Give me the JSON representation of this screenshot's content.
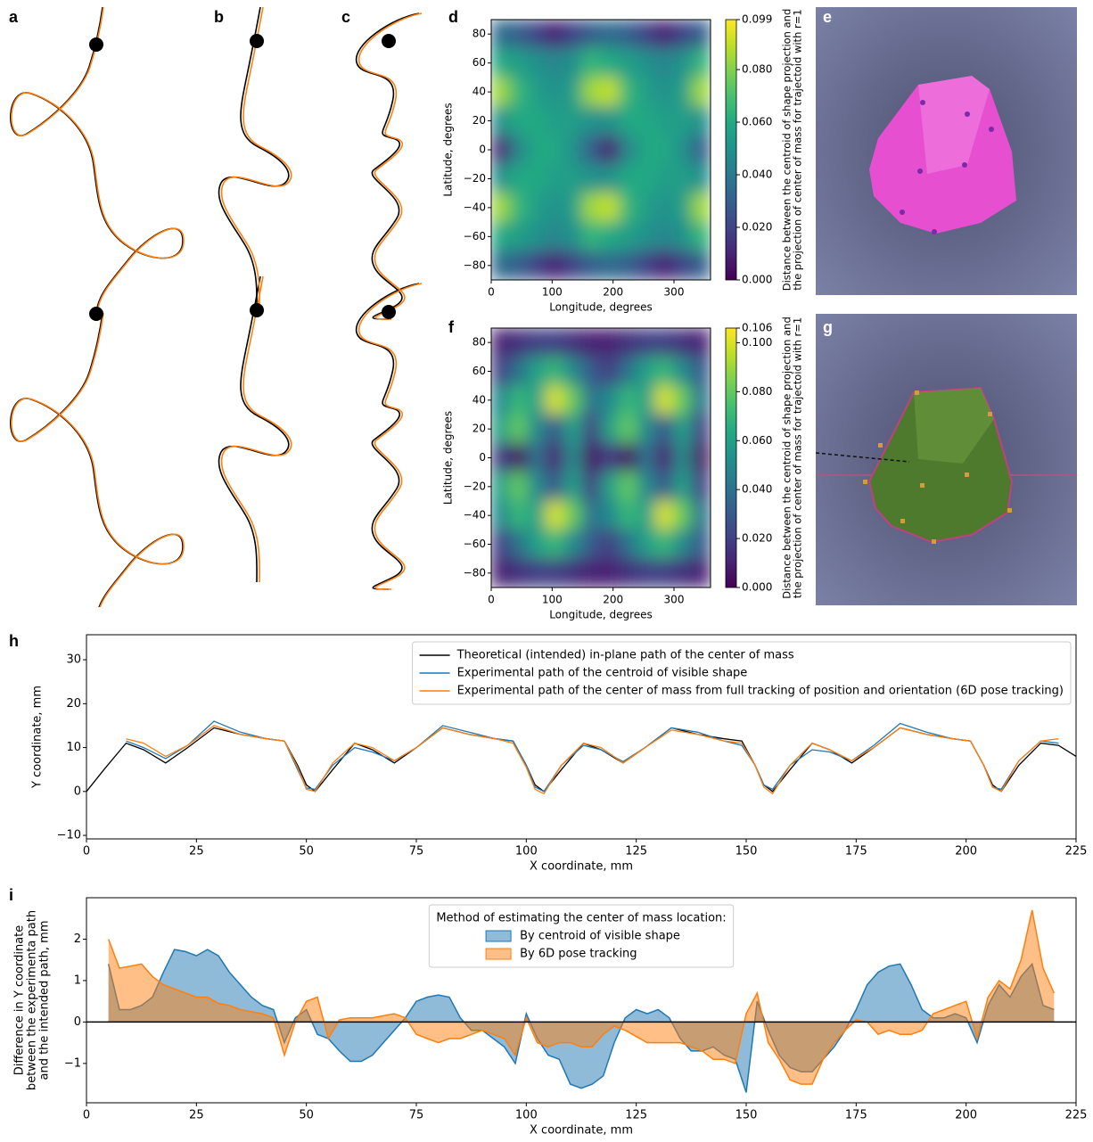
{
  "image_panels": [
    {
      "label": "a"
    },
    {
      "label": "b"
    },
    {
      "label": "c"
    },
    {
      "label": "e"
    },
    {
      "label": "g"
    }
  ],
  "chart_data": [
    {
      "type": "heatmap",
      "label": "d",
      "xlabel": "Longitude, degrees",
      "ylabel": "Latitude, degrees",
      "xlim": [
        0,
        360
      ],
      "ylim": [
        -90,
        90
      ],
      "xticks": [
        0,
        100,
        200,
        300
      ],
      "yticks": [
        {
          "value": -80,
          "label": "−80"
        },
        {
          "value": -60,
          "label": "−60"
        },
        {
          "value": -40,
          "label": "−40"
        },
        {
          "value": -20,
          "label": "−20"
        },
        0,
        20,
        40,
        60,
        80
      ],
      "x": [
        15,
        45,
        75,
        105,
        135,
        165,
        195,
        225,
        255,
        285,
        315,
        345
      ],
      "y": [
        80,
        60,
        40,
        20,
        0,
        -20,
        -40,
        -60,
        -80
      ],
      "z": [
        [
          0.035,
          0.03,
          0.02,
          0.01,
          0.02,
          0.03,
          0.035,
          0.03,
          0.02,
          0.01,
          0.02,
          0.03
        ],
        [
          0.06,
          0.055,
          0.05,
          0.045,
          0.05,
          0.065,
          0.06,
          0.055,
          0.05,
          0.045,
          0.05,
          0.065
        ],
        [
          0.085,
          0.065,
          0.055,
          0.05,
          0.055,
          0.085,
          0.09,
          0.065,
          0.055,
          0.05,
          0.055,
          0.085
        ],
        [
          0.05,
          0.06,
          0.06,
          0.055,
          0.055,
          0.05,
          0.05,
          0.06,
          0.06,
          0.055,
          0.055,
          0.05
        ],
        [
          0.01,
          0.045,
          0.06,
          0.06,
          0.05,
          0.03,
          0.01,
          0.045,
          0.06,
          0.06,
          0.05,
          0.03
        ],
        [
          0.05,
          0.06,
          0.06,
          0.055,
          0.055,
          0.05,
          0.05,
          0.06,
          0.06,
          0.055,
          0.055,
          0.05
        ],
        [
          0.085,
          0.065,
          0.055,
          0.05,
          0.055,
          0.085,
          0.09,
          0.065,
          0.055,
          0.05,
          0.055,
          0.085
        ],
        [
          0.06,
          0.055,
          0.05,
          0.045,
          0.05,
          0.065,
          0.06,
          0.055,
          0.05,
          0.045,
          0.05,
          0.065
        ],
        [
          0.035,
          0.03,
          0.02,
          0.01,
          0.02,
          0.03,
          0.035,
          0.03,
          0.02,
          0.01,
          0.02,
          0.03
        ]
      ],
      "colormap": "viridis",
      "zlim": [
        0,
        0.099
      ],
      "colorbar_ticks": [
        {
          "value": 0,
          "label": "0.000"
        },
        {
          "value": 0.02,
          "label": "0.020"
        },
        {
          "value": 0.04,
          "label": "0.040"
        },
        {
          "value": 0.06,
          "label": "0.060"
        },
        {
          "value": 0.08,
          "label": "0.080"
        },
        {
          "value": 0.099,
          "label": "0.099"
        }
      ],
      "colorbar_label": [
        "Distance between the centroid of shape projection and",
        "the projection of center of mass for trajectoid with r=1"
      ]
    },
    {
      "type": "heatmap",
      "label": "f",
      "xlabel": "Longitude, degrees",
      "ylabel": "Latitude, degrees",
      "xlim": [
        0,
        360
      ],
      "ylim": [
        -90,
        90
      ],
      "xticks": [
        0,
        100,
        200,
        300
      ],
      "yticks": [
        {
          "value": -80,
          "label": "−80"
        },
        {
          "value": -60,
          "label": "−60"
        },
        {
          "value": -40,
          "label": "−40"
        },
        {
          "value": -20,
          "label": "−20"
        },
        0,
        20,
        40,
        60,
        80
      ],
      "x": [
        15,
        45,
        75,
        105,
        135,
        165,
        195,
        225,
        255,
        285,
        315,
        345
      ],
      "y": [
        80,
        60,
        40,
        20,
        0,
        -20,
        -40,
        -60,
        -80
      ],
      "z": [
        [
          0.01,
          0.015,
          0.02,
          0.02,
          0.015,
          0.01,
          0.01,
          0.015,
          0.02,
          0.02,
          0.015,
          0.01
        ],
        [
          0.02,
          0.04,
          0.06,
          0.07,
          0.05,
          0.03,
          0.02,
          0.04,
          0.06,
          0.07,
          0.05,
          0.03
        ],
        [
          0.05,
          0.07,
          0.06,
          0.1,
          0.08,
          0.04,
          0.05,
          0.07,
          0.06,
          0.1,
          0.08,
          0.04
        ],
        [
          0.06,
          0.08,
          0.05,
          0.03,
          0.06,
          0.02,
          0.06,
          0.08,
          0.05,
          0.03,
          0.06,
          0.02
        ],
        [
          0.02,
          0.005,
          0.04,
          0.01,
          0.05,
          0.005,
          0.02,
          0.005,
          0.04,
          0.01,
          0.05,
          0.005
        ],
        [
          0.06,
          0.08,
          0.05,
          0.03,
          0.06,
          0.02,
          0.06,
          0.08,
          0.05,
          0.03,
          0.06,
          0.02
        ],
        [
          0.05,
          0.07,
          0.06,
          0.1,
          0.08,
          0.04,
          0.05,
          0.07,
          0.06,
          0.1,
          0.08,
          0.04
        ],
        [
          0.02,
          0.04,
          0.06,
          0.07,
          0.05,
          0.03,
          0.02,
          0.04,
          0.06,
          0.07,
          0.05,
          0.03
        ],
        [
          0.01,
          0.015,
          0.02,
          0.02,
          0.015,
          0.01,
          0.01,
          0.015,
          0.02,
          0.02,
          0.015,
          0.01
        ]
      ],
      "colormap": "viridis",
      "zlim": [
        0,
        0.106
      ],
      "colorbar_ticks": [
        {
          "value": 0,
          "label": "0.000"
        },
        {
          "value": 0.02,
          "label": "0.020"
        },
        {
          "value": 0.04,
          "label": "0.040"
        },
        {
          "value": 0.06,
          "label": "0.060"
        },
        {
          "value": 0.08,
          "label": "0.080"
        },
        {
          "value": 0.1,
          "label": "0.100"
        },
        {
          "value": 0.106,
          "label": "0.106"
        }
      ],
      "colorbar_label": [
        "Distance between the centroid of shape projection and",
        "the projection of center of mass for trajectoid with r=1"
      ]
    },
    {
      "type": "line",
      "label": "h",
      "xlabel": "X coordinate, mm",
      "ylabel": "Y coordinate, mm",
      "xlim": [
        0,
        225
      ],
      "ylim": [
        -10.8,
        35.7
      ],
      "xticks": [
        0,
        25,
        50,
        75,
        100,
        125,
        150,
        175,
        200,
        225
      ],
      "yticks": [
        {
          "value": -10,
          "label": "−10"
        },
        0,
        10,
        20,
        30
      ],
      "legend": "upper right",
      "x": [
        0,
        4,
        9,
        13,
        18,
        23,
        29,
        35,
        41,
        45,
        48,
        50,
        52,
        56,
        61,
        65,
        70,
        75,
        81,
        87,
        93,
        97,
        100,
        102,
        104,
        108,
        113,
        117,
        122,
        127,
        133,
        139,
        145,
        149,
        152,
        154,
        156,
        160,
        165,
        169,
        174,
        179,
        185,
        191,
        197,
        201,
        204,
        206,
        208,
        212,
        217,
        221,
        225
      ],
      "series": [
        {
          "name": "Theoretical (intended) in-plane path of the center of mass",
          "color": "#000000",
          "values": [
            0,
            5,
            11,
            9.5,
            6.5,
            10,
            14.5,
            13,
            12,
            11.5,
            6,
            1.5,
            0,
            5,
            11,
            9.5,
            6.5,
            10,
            14.5,
            13,
            12,
            11.5,
            6,
            1.5,
            0,
            5,
            11,
            9.5,
            6.5,
            10,
            14.5,
            13,
            12,
            11.5,
            6,
            1.5,
            0,
            5,
            11,
            9.5,
            6.5,
            10,
            14.5,
            13,
            12,
            11.5,
            6,
            1.5,
            0,
            6,
            11,
            10.5,
            8
          ]
        },
        {
          "name": "Experimental path of the centroid of visible shape",
          "color": "#1f77b4",
          "values": [
            null,
            null,
            11.5,
            10,
            7.5,
            10.5,
            16,
            13.5,
            12,
            11.5,
            5,
            0.8,
            0.5,
            6,
            10,
            9,
            7,
            10,
            15,
            13.5,
            12,
            11.5,
            6,
            1,
            0,
            6,
            10.5,
            9.5,
            6.8,
            10,
            14.5,
            13.5,
            11.5,
            10.5,
            6,
            1.5,
            0.5,
            6,
            9.5,
            9,
            7,
            10.5,
            15.5,
            13.5,
            12,
            11.5,
            6,
            1,
            0.5,
            7,
            11.5,
            11,
            null
          ]
        },
        {
          "name": "Experimental path of the center of mass from full tracking of position and orientation (6D pose tracking)",
          "color": "#ff7f0e",
          "values": [
            null,
            null,
            12,
            11,
            8,
            10.5,
            15,
            13,
            12,
            11.5,
            5.5,
            0.5,
            0,
            6.5,
            11,
            10,
            7,
            10,
            14.5,
            13,
            12,
            11,
            5.5,
            0.5,
            -0.5,
            6,
            11,
            10,
            6.5,
            10,
            14,
            13,
            11.5,
            11,
            6,
            1,
            -0.5,
            6,
            11,
            9.5,
            7,
            10,
            14.5,
            13,
            12,
            11.5,
            6,
            1,
            0,
            7,
            11.5,
            12,
            null
          ]
        }
      ]
    },
    {
      "type": "area",
      "label": "i",
      "xlabel": "X coordinate, mm",
      "ylabel": [
        "Difference in Y coordinate",
        "between the experimenta path",
        "and the intended path, mm"
      ],
      "xlim": [
        0,
        225
      ],
      "ylim": [
        -1.95,
        3.0
      ],
      "xticks": [
        0,
        25,
        50,
        75,
        100,
        125,
        150,
        175,
        200,
        225
      ],
      "yticks": [
        {
          "value": -1,
          "label": "−1"
        },
        0,
        1,
        2
      ],
      "hline": 0,
      "fill_opacity": 0.5,
      "legend": "upper center",
      "legend_title": "Method of estimating the center of mass location:",
      "x": [
        5,
        7.5,
        10,
        12.5,
        15,
        17.5,
        20,
        22.5,
        25,
        27.5,
        30,
        32.5,
        35,
        37.5,
        40,
        42.5,
        45,
        47.5,
        50,
        52.5,
        55,
        57.5,
        60,
        62.5,
        65,
        67.5,
        70,
        72.5,
        75,
        77.5,
        80,
        82.5,
        85,
        87.5,
        90,
        92.5,
        95,
        97.5,
        100,
        102.5,
        105,
        107.5,
        110,
        112.5,
        115,
        117.5,
        120,
        122.5,
        125,
        127.5,
        130,
        132.5,
        135,
        137.5,
        140,
        142.5,
        145,
        147.5,
        150,
        152.5,
        155,
        157.5,
        160,
        162.5,
        165,
        167.5,
        170,
        172.5,
        175,
        177.5,
        180,
        182.5,
        185,
        187.5,
        190,
        192.5,
        195,
        197.5,
        200,
        202.5,
        205,
        207.5,
        210,
        212.5,
        215,
        217.5,
        220
      ],
      "series": [
        {
          "name": "By centroid of visible shape",
          "color": "#1f77b4",
          "values": [
            1.4,
            0.3,
            0.3,
            0.4,
            0.6,
            1.2,
            1.75,
            1.7,
            1.6,
            1.75,
            1.6,
            1.2,
            0.9,
            0.6,
            0.4,
            0.3,
            -0.5,
            0.1,
            0.3,
            -0.3,
            -0.4,
            -0.7,
            -0.95,
            -0.95,
            -0.8,
            -0.5,
            -0.2,
            0.1,
            0.5,
            0.6,
            0.65,
            0.6,
            0.1,
            -0.2,
            -0.2,
            -0.4,
            -0.6,
            -1.0,
            0.2,
            -0.4,
            -0.8,
            -0.9,
            -1.5,
            -1.6,
            -1.5,
            -1.3,
            -0.5,
            0.1,
            0.3,
            0.2,
            0.3,
            0.1,
            -0.4,
            -0.7,
            -0.7,
            -0.6,
            -0.8,
            -0.9,
            -1.7,
            0.5,
            -0.2,
            -0.8,
            -1.1,
            -1.2,
            -1.2,
            -0.9,
            -0.6,
            -0.2,
            0.3,
            0.9,
            1.2,
            1.35,
            1.4,
            0.9,
            0.3,
            0.1,
            0.1,
            0.2,
            0.1,
            -0.5,
            0.4,
            0.9,
            0.6,
            1.1,
            1.4,
            0.4,
            0.3
          ]
        },
        {
          "name": "By 6D pose tracking",
          "color": "#ff7f0e",
          "values": [
            2.0,
            1.3,
            1.35,
            1.4,
            1.1,
            0.9,
            0.8,
            0.7,
            0.6,
            0.6,
            0.45,
            0.4,
            0.3,
            0.25,
            0.2,
            0.1,
            -0.8,
            0.0,
            0.5,
            0.6,
            -0.4,
            0.05,
            0.1,
            0.1,
            0.1,
            0.15,
            0.2,
            0.1,
            -0.3,
            -0.4,
            -0.5,
            -0.4,
            -0.4,
            -0.3,
            -0.2,
            -0.3,
            -0.4,
            -0.8,
            0.1,
            -0.5,
            -0.6,
            -0.5,
            -0.5,
            -0.6,
            -0.6,
            -0.3,
            -0.1,
            -0.2,
            -0.35,
            -0.5,
            -0.5,
            -0.5,
            -0.5,
            -0.6,
            -0.7,
            -0.9,
            -0.9,
            -1.0,
            0.2,
            0.7,
            -0.5,
            -0.9,
            -1.4,
            -1.5,
            -1.5,
            -0.9,
            -0.5,
            -0.2,
            0.05,
            0.0,
            -0.3,
            -0.2,
            -0.3,
            -0.3,
            -0.2,
            0.2,
            0.3,
            0.4,
            0.5,
            -0.4,
            0.6,
            1.0,
            0.8,
            1.5,
            2.7,
            1.3,
            0.7
          ]
        }
      ]
    }
  ]
}
